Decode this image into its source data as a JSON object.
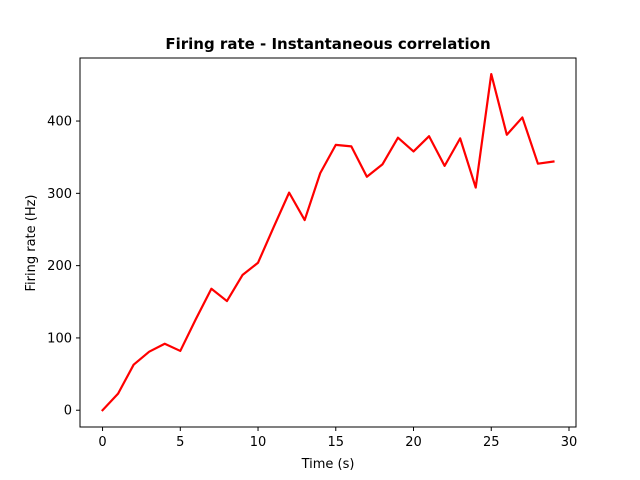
{
  "chart_data": {
    "type": "line",
    "title": "Firing rate - Instantaneous correlation",
    "xlabel": "Time (s)",
    "ylabel": "Firing rate (Hz)",
    "xlim": [
      -1.45,
      30.45
    ],
    "ylim": [
      -23.2,
      487.2
    ],
    "xticks": [
      0,
      5,
      10,
      15,
      20,
      25,
      30
    ],
    "yticks": [
      0,
      100,
      200,
      300,
      400
    ],
    "grid": false,
    "series": [
      {
        "color": "#ff0000",
        "x": [
          0,
          1,
          2,
          3,
          4,
          5,
          6,
          7,
          8,
          9,
          10,
          11,
          12,
          13,
          14,
          15,
          16,
          17,
          18,
          19,
          20,
          21,
          22,
          23,
          24,
          25,
          26,
          27,
          28,
          29
        ],
        "y": [
          0,
          23,
          63,
          81,
          92,
          82,
          126,
          168,
          151,
          187,
          204,
          253,
          301,
          263,
          328,
          367,
          365,
          323,
          340,
          377,
          358,
          379,
          338,
          376,
          308,
          465,
          381,
          405,
          341,
          344
        ]
      }
    ]
  }
}
